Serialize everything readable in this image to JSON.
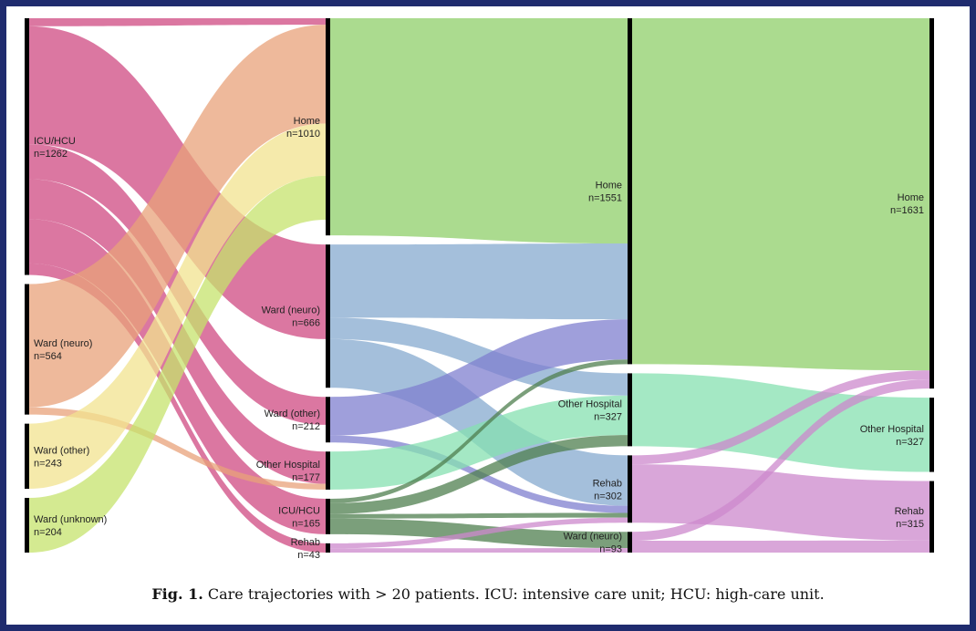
{
  "diagram": {
    "type": "sankey",
    "stages": [
      {
        "nodes": [
          {
            "id": "s0_icu",
            "name": "ICU/HCU",
            "count": "n=1262",
            "color": "#cf4a82"
          },
          {
            "id": "s0_wardneuro",
            "name": "Ward (neuro)",
            "count": "n=564",
            "color": "#e8a27a"
          },
          {
            "id": "s0_wardother",
            "name": "Ward (other)",
            "count": "n=243",
            "color": "#f1e38f"
          },
          {
            "id": "s0_wardunknown",
            "name": "Ward (unknown)",
            "count": "n=204",
            "color": "#c6e36c"
          }
        ]
      },
      {
        "nodes": [
          {
            "id": "s1_home",
            "name": "Home",
            "count": "n=1010",
            "color": "#8fcf6a"
          },
          {
            "id": "s1_wardneuro",
            "name": "Ward (neuro)",
            "count": "n=666",
            "color": "#85aacf"
          },
          {
            "id": "s1_wardother",
            "name": "Ward (other)",
            "count": "n=212",
            "color": "#7f7fcf"
          },
          {
            "id": "s1_otherhosp",
            "name": "Other Hospital",
            "count": "n=177",
            "color": "#86e0b0"
          },
          {
            "id": "s1_icu",
            "name": "ICU/HCU",
            "count": "n=165",
            "color": "#4f7f4f"
          },
          {
            "id": "s1_rehab",
            "name": "Rehab",
            "count": "n=43",
            "color": "#cc88cc"
          }
        ]
      },
      {
        "nodes": [
          {
            "id": "s2_home",
            "name": "Home",
            "count": "n=1551",
            "color": "#8fcf6a"
          },
          {
            "id": "s2_otherhosp",
            "name": "Other Hospital",
            "count": "n=327",
            "color": "#86e0b0"
          },
          {
            "id": "s2_rehab",
            "name": "Rehab",
            "count": "n=302",
            "color": "#cc88cc"
          },
          {
            "id": "s2_wardneuro",
            "name": "Ward (neuro)",
            "count": "n=93",
            "color": "#cc88cc"
          }
        ]
      },
      {
        "nodes": [
          {
            "id": "s3_home",
            "name": "Home",
            "count": "n=1631",
            "color": "#8fcf6a"
          },
          {
            "id": "s3_otherhosp",
            "name": "Other Hospital",
            "count": "n=327",
            "color": "#86e0b0"
          },
          {
            "id": "s3_rehab",
            "name": "Rehab",
            "count": "n=315",
            "color": "#cc88cc"
          }
        ]
      }
    ],
    "links": [
      {
        "source": "s0_icu",
        "target": "s1_home",
        "value": 30,
        "color": "#cf4a82"
      },
      {
        "source": "s0_icu",
        "target": "s1_wardneuro",
        "value": 440,
        "color": "#cf4a82"
      },
      {
        "source": "s0_icu",
        "target": "s1_wardother",
        "value": 130,
        "color": "#cf4a82"
      },
      {
        "source": "s0_icu",
        "target": "s1_otherhosp",
        "value": 150,
        "color": "#cf4a82"
      },
      {
        "source": "s0_icu",
        "target": "s1_icu",
        "value": 165,
        "color": "#cf4a82"
      },
      {
        "source": "s0_icu",
        "target": "s1_rehab",
        "value": 43,
        "color": "#cf4a82"
      },
      {
        "source": "s0_wardneuro",
        "target": "s1_home",
        "value": 460,
        "color": "#e8a27a"
      },
      {
        "source": "s0_wardneuro",
        "target": "s1_otherhosp",
        "value": 27,
        "color": "#e8a27a"
      },
      {
        "source": "s0_wardother",
        "target": "s1_home",
        "value": 243,
        "color": "#f1e38f"
      },
      {
        "source": "s0_wardunknown",
        "target": "s1_home",
        "value": 204,
        "color": "#c6e36c"
      },
      {
        "source": "s1_home",
        "target": "s2_home",
        "value": 1010,
        "color": "#8fcf6a"
      },
      {
        "source": "s1_wardneuro",
        "target": "s2_home",
        "value": 340,
        "color": "#85aacf"
      },
      {
        "source": "s1_wardneuro",
        "target": "s2_otherhosp",
        "value": 100,
        "color": "#85aacf"
      },
      {
        "source": "s1_wardneuro",
        "target": "s2_rehab",
        "value": 226,
        "color": "#85aacf"
      },
      {
        "source": "s1_wardother",
        "target": "s2_home",
        "value": 180,
        "color": "#7f7fcf"
      },
      {
        "source": "s1_wardother",
        "target": "s2_rehab",
        "value": 32,
        "color": "#7f7fcf"
      },
      {
        "source": "s1_otherhosp",
        "target": "s2_otherhosp",
        "value": 177,
        "color": "#86e0b0"
      },
      {
        "source": "s1_icu",
        "target": "s2_home",
        "value": 21,
        "color": "#4f7f4f"
      },
      {
        "source": "s1_icu",
        "target": "s2_otherhosp",
        "value": 50,
        "color": "#4f7f4f"
      },
      {
        "source": "s1_icu",
        "target": "s2_rehab",
        "value": 21,
        "color": "#4f7f4f"
      },
      {
        "source": "s1_icu",
        "target": "s2_wardneuro",
        "value": 73,
        "color": "#4f7f4f"
      },
      {
        "source": "s1_rehab",
        "target": "s2_rehab",
        "value": 23,
        "color": "#cc88cc"
      },
      {
        "source": "s1_rehab",
        "target": "s2_wardneuro",
        "value": 20,
        "color": "#cc88cc"
      },
      {
        "source": "s2_home",
        "target": "s3_home",
        "value": 1551,
        "color": "#8fcf6a"
      },
      {
        "source": "s2_otherhosp",
        "target": "s3_otherhosp",
        "value": 327,
        "color": "#86e0b0"
      },
      {
        "source": "s2_rehab",
        "target": "s3_home",
        "value": 40,
        "color": "#cc88cc"
      },
      {
        "source": "s2_rehab",
        "target": "s3_rehab",
        "value": 262,
        "color": "#cc88cc"
      },
      {
        "source": "s2_wardneuro",
        "target": "s3_home",
        "value": 40,
        "color": "#cc88cc"
      },
      {
        "source": "s2_wardneuro",
        "target": "s3_rehab",
        "value": 53,
        "color": "#cc88cc"
      }
    ]
  },
  "caption": {
    "label": "Fig. 1.",
    "text": " Care trajectories with > 20 patients. ICU: intensive care unit; HCU: high-care unit."
  },
  "colors": {
    "frame_border": "#1f2b6e",
    "node_bar": "#000000"
  }
}
